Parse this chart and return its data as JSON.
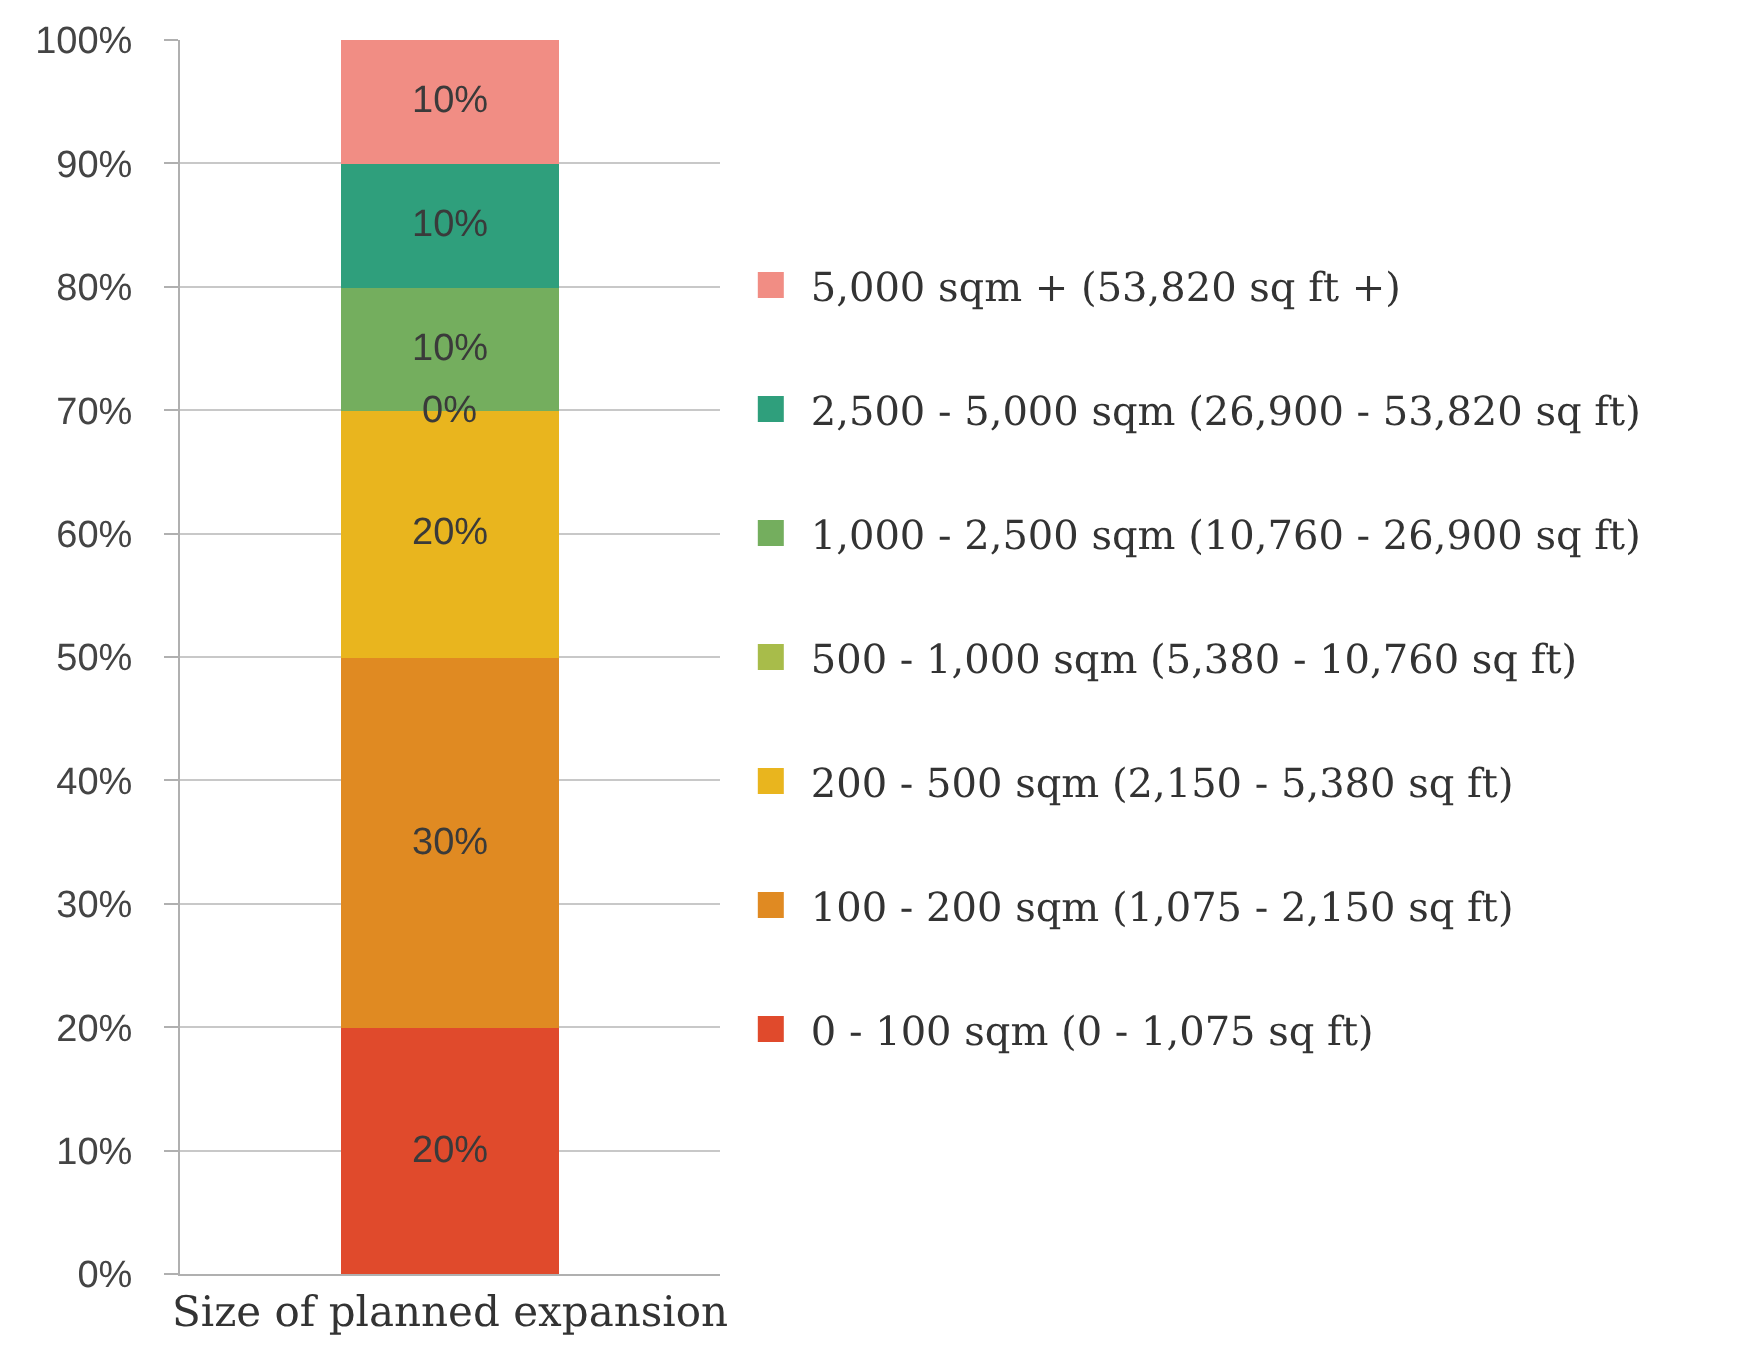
{
  "chart_data": {
    "type": "bar",
    "stacked": true,
    "categories": [
      "Size of planned expansion"
    ],
    "series": [
      {
        "name": "0 - 100 sqm (0 - 1,075 sq ft)",
        "color": "#e04a2c",
        "values": [
          20
        ],
        "value_labels": [
          "20%"
        ]
      },
      {
        "name": "100 - 200 sqm (1,075 - 2,150 sq ft)",
        "color": "#e08a22",
        "values": [
          30
        ],
        "value_labels": [
          "30%"
        ]
      },
      {
        "name": "200 - 500 sqm (2,150 - 5,380 sq ft)",
        "color": "#e9b51e",
        "values": [
          20
        ],
        "value_labels": [
          "20%"
        ]
      },
      {
        "name": "500 - 1,000 sqm (5,380 - 10,760 sq ft)",
        "color": "#a8bc4a",
        "values": [
          0
        ],
        "value_labels": [
          "0%"
        ]
      },
      {
        "name": "1,000 - 2,500 sqm (10,760 - 26,900 sq ft)",
        "color": "#74ae5e",
        "values": [
          10
        ],
        "value_labels": [
          "10%"
        ]
      },
      {
        "name": "2,500 - 5,000 sqm (26,900 - 53,820 sq ft)",
        "color": "#2f9f7c",
        "values": [
          10
        ],
        "value_labels": [
          "10%"
        ]
      },
      {
        "name": "5,000 sqm + (53,820 sq ft +)",
        "color": "#f18d84",
        "values": [
          10
        ],
        "value_labels": [
          "10%"
        ]
      }
    ],
    "ylim": [
      0,
      100
    ],
    "yticks": [
      {
        "value": 0,
        "label": "0%"
      },
      {
        "value": 10,
        "label": "10%"
      },
      {
        "value": 20,
        "label": "20%"
      },
      {
        "value": 30,
        "label": "30%"
      },
      {
        "value": 40,
        "label": "40%"
      },
      {
        "value": 50,
        "label": "50%"
      },
      {
        "value": 60,
        "label": "60%"
      },
      {
        "value": 70,
        "label": "70%"
      },
      {
        "value": 80,
        "label": "80%"
      },
      {
        "value": 90,
        "label": "90%"
      },
      {
        "value": 100,
        "label": "100%"
      }
    ],
    "grid": "y",
    "legend": "right"
  }
}
